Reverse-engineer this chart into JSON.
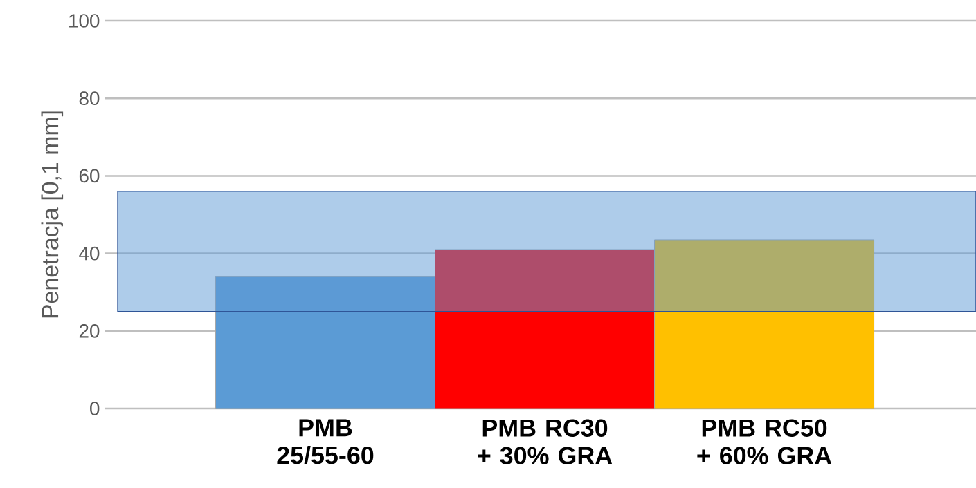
{
  "chart_data": {
    "type": "bar",
    "categories": [
      "PMB 25/55-60",
      "PMB RC30 + 30% GRA",
      "PMB RC50 + 60% GRA"
    ],
    "values": [
      34,
      41,
      43.5
    ],
    "colors": [
      "#5b9bd5",
      "#ff0000",
      "#ffc000"
    ],
    "ylabel": "Penetracja [0,1 mm]",
    "ylim": [
      0,
      100
    ],
    "yticks": [
      0,
      20,
      40,
      60,
      80,
      100
    ],
    "grid": "y",
    "bands": [
      {
        "axis": "y",
        "from": 25,
        "to": 56,
        "color": "#5d9ad5"
      }
    ]
  }
}
